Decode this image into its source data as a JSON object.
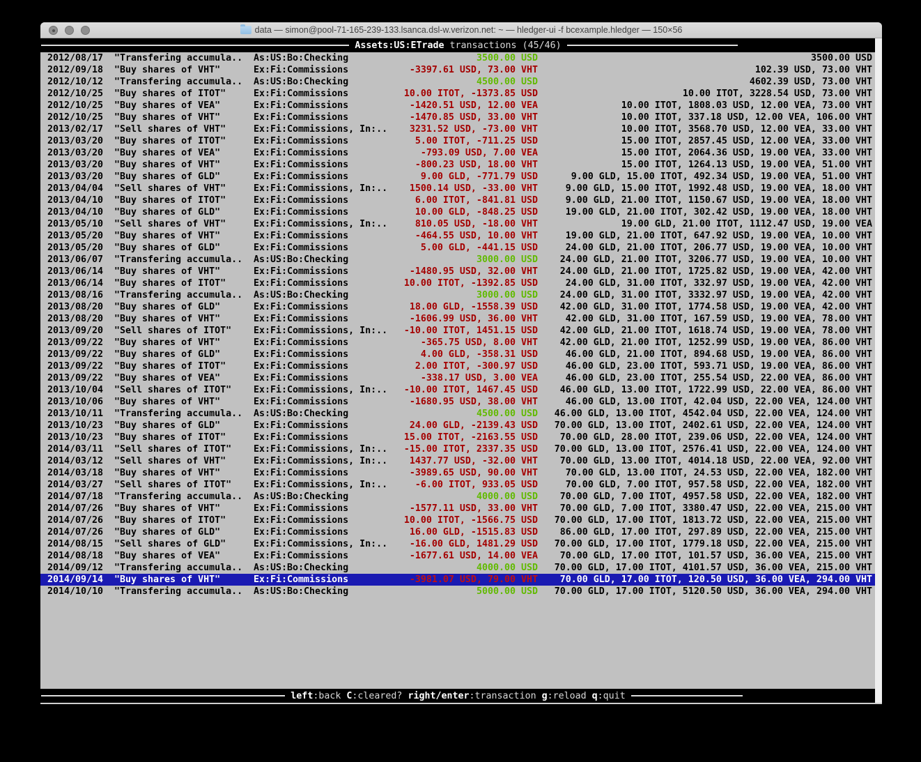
{
  "window": {
    "title": "data — simon@pool-71-165-239-133.lsanca.dsl-w.verizon.net: ~ — hledger-ui -f bcexample.hledger — 150×56",
    "controls": [
      "close",
      "minimize",
      "zoom"
    ]
  },
  "header": {
    "account": "Assets:US:ETrade",
    "info": "transactions (45/46)"
  },
  "footer": {
    "keys": [
      {
        "key": "left",
        "action": ":back"
      },
      {
        "key": "C",
        "action": ":cleared?"
      },
      {
        "key": "right/enter",
        "action": ":transaction"
      },
      {
        "key": "g",
        "action": ":reload"
      },
      {
        "key": "q",
        "action": ":quit"
      }
    ]
  },
  "colors": {
    "selection_bg": "#1a1ab2",
    "positive_amount": "#61ba00",
    "negative_amount": "#a40000",
    "terminal_bg": "#c1c1c1",
    "band_bg": "#000000"
  },
  "register": {
    "rows": [
      {
        "date": "2012/08/17",
        "description": "\"Transfering accumula..",
        "account": "As:US:Bo:Checking",
        "change": "3500.00 USD",
        "change_color": "green",
        "balance": "3500.00 USD",
        "selected": false
      },
      {
        "date": "2012/09/18",
        "description": "\"Buy shares of VHT\"",
        "account": "Ex:Fi:Commissions",
        "change": "-3397.61 USD, 73.00 VHT",
        "change_color": "red",
        "balance": "102.39 USD, 73.00 VHT",
        "selected": false
      },
      {
        "date": "2012/10/12",
        "description": "\"Transfering accumula..",
        "account": "As:US:Bo:Checking",
        "change": "4500.00 USD",
        "change_color": "green",
        "balance": "4602.39 USD, 73.00 VHT",
        "selected": false
      },
      {
        "date": "2012/10/25",
        "description": "\"Buy shares of ITOT\"",
        "account": "Ex:Fi:Commissions",
        "change": "10.00 ITOT, -1373.85 USD",
        "change_color": "red",
        "balance": "10.00 ITOT, 3228.54 USD, 73.00 VHT",
        "selected": false
      },
      {
        "date": "2012/10/25",
        "description": "\"Buy shares of VEA\"",
        "account": "Ex:Fi:Commissions",
        "change": "-1420.51 USD, 12.00 VEA",
        "change_color": "red",
        "balance": "10.00 ITOT, 1808.03 USD, 12.00 VEA, 73.00 VHT",
        "selected": false
      },
      {
        "date": "2012/10/25",
        "description": "\"Buy shares of VHT\"",
        "account": "Ex:Fi:Commissions",
        "change": "-1470.85 USD, 33.00 VHT",
        "change_color": "red",
        "balance": "10.00 ITOT, 337.18 USD, 12.00 VEA, 106.00 VHT",
        "selected": false
      },
      {
        "date": "2013/02/17",
        "description": "\"Sell shares of VHT\"",
        "account": "Ex:Fi:Commissions, In:..",
        "change": "3231.52 USD, -73.00 VHT",
        "change_color": "red",
        "balance": "10.00 ITOT, 3568.70 USD, 12.00 VEA, 33.00 VHT",
        "selected": false
      },
      {
        "date": "2013/03/20",
        "description": "\"Buy shares of ITOT\"",
        "account": "Ex:Fi:Commissions",
        "change": "5.00 ITOT, -711.25 USD",
        "change_color": "red",
        "balance": "15.00 ITOT, 2857.45 USD, 12.00 VEA, 33.00 VHT",
        "selected": false
      },
      {
        "date": "2013/03/20",
        "description": "\"Buy shares of VEA\"",
        "account": "Ex:Fi:Commissions",
        "change": "-793.09 USD, 7.00 VEA",
        "change_color": "red",
        "balance": "15.00 ITOT, 2064.36 USD, 19.00 VEA, 33.00 VHT",
        "selected": false
      },
      {
        "date": "2013/03/20",
        "description": "\"Buy shares of VHT\"",
        "account": "Ex:Fi:Commissions",
        "change": "-800.23 USD, 18.00 VHT",
        "change_color": "red",
        "balance": "15.00 ITOT, 1264.13 USD, 19.00 VEA, 51.00 VHT",
        "selected": false
      },
      {
        "date": "2013/03/20",
        "description": "\"Buy shares of GLD\"",
        "account": "Ex:Fi:Commissions",
        "change": "9.00 GLD, -771.79 USD",
        "change_color": "red",
        "balance": "9.00 GLD, 15.00 ITOT, 492.34 USD, 19.00 VEA, 51.00 VHT",
        "selected": false
      },
      {
        "date": "2013/04/04",
        "description": "\"Sell shares of VHT\"",
        "account": "Ex:Fi:Commissions, In:..",
        "change": "1500.14 USD, -33.00 VHT",
        "change_color": "red",
        "balance": "9.00 GLD, 15.00 ITOT, 1992.48 USD, 19.00 VEA, 18.00 VHT",
        "selected": false
      },
      {
        "date": "2013/04/10",
        "description": "\"Buy shares of ITOT\"",
        "account": "Ex:Fi:Commissions",
        "change": "6.00 ITOT, -841.81 USD",
        "change_color": "red",
        "balance": "9.00 GLD, 21.00 ITOT, 1150.67 USD, 19.00 VEA, 18.00 VHT",
        "selected": false
      },
      {
        "date": "2013/04/10",
        "description": "\"Buy shares of GLD\"",
        "account": "Ex:Fi:Commissions",
        "change": "10.00 GLD, -848.25 USD",
        "change_color": "red",
        "balance": "19.00 GLD, 21.00 ITOT, 302.42 USD, 19.00 VEA, 18.00 VHT",
        "selected": false
      },
      {
        "date": "2013/05/10",
        "description": "\"Sell shares of VHT\"",
        "account": "Ex:Fi:Commissions, In:..",
        "change": "810.05 USD, -18.00 VHT",
        "change_color": "red",
        "balance": "19.00 GLD, 21.00 ITOT, 1112.47 USD, 19.00 VEA",
        "selected": false
      },
      {
        "date": "2013/05/20",
        "description": "\"Buy shares of VHT\"",
        "account": "Ex:Fi:Commissions",
        "change": "-464.55 USD, 10.00 VHT",
        "change_color": "red",
        "balance": "19.00 GLD, 21.00 ITOT, 647.92 USD, 19.00 VEA, 10.00 VHT",
        "selected": false
      },
      {
        "date": "2013/05/20",
        "description": "\"Buy shares of GLD\"",
        "account": "Ex:Fi:Commissions",
        "change": "5.00 GLD, -441.15 USD",
        "change_color": "red",
        "balance": "24.00 GLD, 21.00 ITOT, 206.77 USD, 19.00 VEA, 10.00 VHT",
        "selected": false
      },
      {
        "date": "2013/06/07",
        "description": "\"Transfering accumula..",
        "account": "As:US:Bo:Checking",
        "change": "3000.00 USD",
        "change_color": "green",
        "balance": "24.00 GLD, 21.00 ITOT, 3206.77 USD, 19.00 VEA, 10.00 VHT",
        "selected": false
      },
      {
        "date": "2013/06/14",
        "description": "\"Buy shares of VHT\"",
        "account": "Ex:Fi:Commissions",
        "change": "-1480.95 USD, 32.00 VHT",
        "change_color": "red",
        "balance": "24.00 GLD, 21.00 ITOT, 1725.82 USD, 19.00 VEA, 42.00 VHT",
        "selected": false
      },
      {
        "date": "2013/06/14",
        "description": "\"Buy shares of ITOT\"",
        "account": "Ex:Fi:Commissions",
        "change": "10.00 ITOT, -1392.85 USD",
        "change_color": "red",
        "balance": "24.00 GLD, 31.00 ITOT, 332.97 USD, 19.00 VEA, 42.00 VHT",
        "selected": false
      },
      {
        "date": "2013/08/16",
        "description": "\"Transfering accumula..",
        "account": "As:US:Bo:Checking",
        "change": "3000.00 USD",
        "change_color": "green",
        "balance": "24.00 GLD, 31.00 ITOT, 3332.97 USD, 19.00 VEA, 42.00 VHT",
        "selected": false
      },
      {
        "date": "2013/08/20",
        "description": "\"Buy shares of GLD\"",
        "account": "Ex:Fi:Commissions",
        "change": "18.00 GLD, -1558.39 USD",
        "change_color": "red",
        "balance": "42.00 GLD, 31.00 ITOT, 1774.58 USD, 19.00 VEA, 42.00 VHT",
        "selected": false
      },
      {
        "date": "2013/08/20",
        "description": "\"Buy shares of VHT\"",
        "account": "Ex:Fi:Commissions",
        "change": "-1606.99 USD, 36.00 VHT",
        "change_color": "red",
        "balance": "42.00 GLD, 31.00 ITOT, 167.59 USD, 19.00 VEA, 78.00 VHT",
        "selected": false
      },
      {
        "date": "2013/09/20",
        "description": "\"Sell shares of ITOT\"",
        "account": "Ex:Fi:Commissions, In:..",
        "change": "-10.00 ITOT, 1451.15 USD",
        "change_color": "red",
        "balance": "42.00 GLD, 21.00 ITOT, 1618.74 USD, 19.00 VEA, 78.00 VHT",
        "selected": false
      },
      {
        "date": "2013/09/22",
        "description": "\"Buy shares of VHT\"",
        "account": "Ex:Fi:Commissions",
        "change": "-365.75 USD, 8.00 VHT",
        "change_color": "red",
        "balance": "42.00 GLD, 21.00 ITOT, 1252.99 USD, 19.00 VEA, 86.00 VHT",
        "selected": false
      },
      {
        "date": "2013/09/22",
        "description": "\"Buy shares of GLD\"",
        "account": "Ex:Fi:Commissions",
        "change": "4.00 GLD, -358.31 USD",
        "change_color": "red",
        "balance": "46.00 GLD, 21.00 ITOT, 894.68 USD, 19.00 VEA, 86.00 VHT",
        "selected": false
      },
      {
        "date": "2013/09/22",
        "description": "\"Buy shares of ITOT\"",
        "account": "Ex:Fi:Commissions",
        "change": "2.00 ITOT, -300.97 USD",
        "change_color": "red",
        "balance": "46.00 GLD, 23.00 ITOT, 593.71 USD, 19.00 VEA, 86.00 VHT",
        "selected": false
      },
      {
        "date": "2013/09/22",
        "description": "\"Buy shares of VEA\"",
        "account": "Ex:Fi:Commissions",
        "change": "-338.17 USD, 3.00 VEA",
        "change_color": "red",
        "balance": "46.00 GLD, 23.00 ITOT, 255.54 USD, 22.00 VEA, 86.00 VHT",
        "selected": false
      },
      {
        "date": "2013/10/04",
        "description": "\"Sell shares of ITOT\"",
        "account": "Ex:Fi:Commissions, In:..",
        "change": "-10.00 ITOT, 1467.45 USD",
        "change_color": "red",
        "balance": "46.00 GLD, 13.00 ITOT, 1722.99 USD, 22.00 VEA, 86.00 VHT",
        "selected": false
      },
      {
        "date": "2013/10/06",
        "description": "\"Buy shares of VHT\"",
        "account": "Ex:Fi:Commissions",
        "change": "-1680.95 USD, 38.00 VHT",
        "change_color": "red",
        "balance": "46.00 GLD, 13.00 ITOT, 42.04 USD, 22.00 VEA, 124.00 VHT",
        "selected": false
      },
      {
        "date": "2013/10/11",
        "description": "\"Transfering accumula..",
        "account": "As:US:Bo:Checking",
        "change": "4500.00 USD",
        "change_color": "green",
        "balance": "46.00 GLD, 13.00 ITOT, 4542.04 USD, 22.00 VEA, 124.00 VHT",
        "selected": false
      },
      {
        "date": "2013/10/23",
        "description": "\"Buy shares of GLD\"",
        "account": "Ex:Fi:Commissions",
        "change": "24.00 GLD, -2139.43 USD",
        "change_color": "red",
        "balance": "70.00 GLD, 13.00 ITOT, 2402.61 USD, 22.00 VEA, 124.00 VHT",
        "selected": false
      },
      {
        "date": "2013/10/23",
        "description": "\"Buy shares of ITOT\"",
        "account": "Ex:Fi:Commissions",
        "change": "15.00 ITOT, -2163.55 USD",
        "change_color": "red",
        "balance": "70.00 GLD, 28.00 ITOT, 239.06 USD, 22.00 VEA, 124.00 VHT",
        "selected": false
      },
      {
        "date": "2014/03/11",
        "description": "\"Sell shares of ITOT\"",
        "account": "Ex:Fi:Commissions, In:..",
        "change": "-15.00 ITOT, 2337.35 USD",
        "change_color": "red",
        "balance": "70.00 GLD, 13.00 ITOT, 2576.41 USD, 22.00 VEA, 124.00 VHT",
        "selected": false
      },
      {
        "date": "2014/03/12",
        "description": "\"Sell shares of VHT\"",
        "account": "Ex:Fi:Commissions, In:..",
        "change": "1437.77 USD, -32.00 VHT",
        "change_color": "red",
        "balance": "70.00 GLD, 13.00 ITOT, 4014.18 USD, 22.00 VEA, 92.00 VHT",
        "selected": false
      },
      {
        "date": "2014/03/18",
        "description": "\"Buy shares of VHT\"",
        "account": "Ex:Fi:Commissions",
        "change": "-3989.65 USD, 90.00 VHT",
        "change_color": "red",
        "balance": "70.00 GLD, 13.00 ITOT, 24.53 USD, 22.00 VEA, 182.00 VHT",
        "selected": false
      },
      {
        "date": "2014/03/27",
        "description": "\"Sell shares of ITOT\"",
        "account": "Ex:Fi:Commissions, In:..",
        "change": "-6.00 ITOT, 933.05 USD",
        "change_color": "red",
        "balance": "70.00 GLD, 7.00 ITOT, 957.58 USD, 22.00 VEA, 182.00 VHT",
        "selected": false
      },
      {
        "date": "2014/07/18",
        "description": "\"Transfering accumula..",
        "account": "As:US:Bo:Checking",
        "change": "4000.00 USD",
        "change_color": "green",
        "balance": "70.00 GLD, 7.00 ITOT, 4957.58 USD, 22.00 VEA, 182.00 VHT",
        "selected": false
      },
      {
        "date": "2014/07/26",
        "description": "\"Buy shares of VHT\"",
        "account": "Ex:Fi:Commissions",
        "change": "-1577.11 USD, 33.00 VHT",
        "change_color": "red",
        "balance": "70.00 GLD, 7.00 ITOT, 3380.47 USD, 22.00 VEA, 215.00 VHT",
        "selected": false
      },
      {
        "date": "2014/07/26",
        "description": "\"Buy shares of ITOT\"",
        "account": "Ex:Fi:Commissions",
        "change": "10.00 ITOT, -1566.75 USD",
        "change_color": "red",
        "balance": "70.00 GLD, 17.00 ITOT, 1813.72 USD, 22.00 VEA, 215.00 VHT",
        "selected": false
      },
      {
        "date": "2014/07/26",
        "description": "\"Buy shares of GLD\"",
        "account": "Ex:Fi:Commissions",
        "change": "16.00 GLD, -1515.83 USD",
        "change_color": "red",
        "balance": "86.00 GLD, 17.00 ITOT, 297.89 USD, 22.00 VEA, 215.00 VHT",
        "selected": false
      },
      {
        "date": "2014/08/15",
        "description": "\"Sell shares of GLD\"",
        "account": "Ex:Fi:Commissions, In:..",
        "change": "-16.00 GLD, 1481.29 USD",
        "change_color": "red",
        "balance": "70.00 GLD, 17.00 ITOT, 1779.18 USD, 22.00 VEA, 215.00 VHT",
        "selected": false
      },
      {
        "date": "2014/08/18",
        "description": "\"Buy shares of VEA\"",
        "account": "Ex:Fi:Commissions",
        "change": "-1677.61 USD, 14.00 VEA",
        "change_color": "red",
        "balance": "70.00 GLD, 17.00 ITOT, 101.57 USD, 36.00 VEA, 215.00 VHT",
        "selected": false
      },
      {
        "date": "2014/09/12",
        "description": "\"Transfering accumula..",
        "account": "As:US:Bo:Checking",
        "change": "4000.00 USD",
        "change_color": "green",
        "balance": "70.00 GLD, 17.00 ITOT, 4101.57 USD, 36.00 VEA, 215.00 VHT",
        "selected": false
      },
      {
        "date": "2014/09/14",
        "description": "\"Buy shares of VHT\"",
        "account": "Ex:Fi:Commissions",
        "change": "-3981.07 USD, 79.00 VHT",
        "change_color": "red",
        "balance": "70.00 GLD, 17.00 ITOT, 120.50 USD, 36.00 VEA, 294.00 VHT",
        "selected": true
      },
      {
        "date": "2014/10/10",
        "description": "\"Transfering accumula..",
        "account": "As:US:Bo:Checking",
        "change": "5000.00 USD",
        "change_color": "green",
        "balance": "70.00 GLD, 17.00 ITOT, 5120.50 USD, 36.00 VEA, 294.00 VHT",
        "selected": false
      }
    ]
  }
}
